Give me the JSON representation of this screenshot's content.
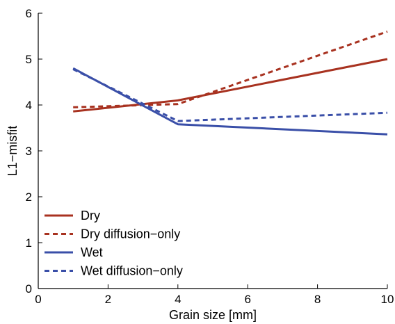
{
  "chart_data": {
    "type": "line",
    "title": "",
    "xlabel": "Grain size [mm]",
    "ylabel": "L1−misfit",
    "xlim": [
      0,
      10
    ],
    "ylim": [
      0,
      6
    ],
    "xticks": [
      0,
      2,
      4,
      6,
      8,
      10
    ],
    "yticks": [
      0,
      1,
      2,
      3,
      4,
      5,
      6
    ],
    "grid": false,
    "legend_position": "bottom-left",
    "series": [
      {
        "name": "Dry",
        "color": "#a83220",
        "dash": "solid",
        "x": [
          1,
          4,
          10
        ],
        "y": [
          3.86,
          4.1,
          5.0
        ]
      },
      {
        "name": "Dry diffusion−only",
        "color": "#a83220",
        "dash": "dashed",
        "x": [
          1,
          4,
          10
        ],
        "y": [
          3.95,
          4.02,
          5.6
        ]
      },
      {
        "name": "Wet",
        "color": "#3a4fa8",
        "dash": "solid",
        "x": [
          1,
          4,
          10
        ],
        "y": [
          4.8,
          3.58,
          3.36
        ]
      },
      {
        "name": "Wet diffusion−only",
        "color": "#3a4fa8",
        "dash": "dashed",
        "x": [
          1,
          4,
          10
        ],
        "y": [
          4.78,
          3.65,
          3.83
        ]
      }
    ]
  }
}
